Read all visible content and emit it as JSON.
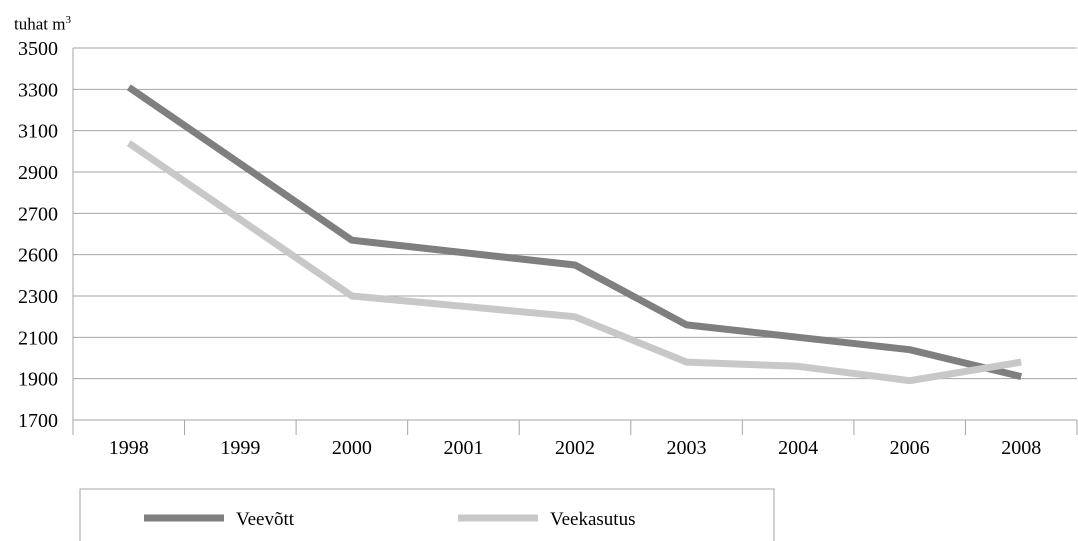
{
  "chart_data": {
    "type": "line",
    "unit_label": "tuhat m",
    "unit_sup": "3",
    "categories": [
      "1998",
      "1999",
      "2000",
      "2001",
      "2002",
      "2003",
      "2004",
      "2006",
      "2008"
    ],
    "y_tick_labels": [
      "3500",
      "3300",
      "3100",
      "2900",
      "2700",
      "2600",
      "2300",
      "2100",
      "1900",
      "1700"
    ],
    "ylim": [
      1700,
      3500
    ],
    "grid": true,
    "legend_position": "bottom",
    "series": [
      {
        "name": "Veevõtt",
        "color": "#7f7f7f",
        "values": [
          3310,
          2940,
          2570,
          2510,
          2450,
          2160,
          2100,
          2040,
          1910
        ]
      },
      {
        "name": "Veekasutus",
        "color": "#c8c8c8",
        "values": [
          3040,
          2670,
          2300,
          2250,
          2200,
          1980,
          1960,
          1890,
          1980
        ]
      }
    ]
  }
}
